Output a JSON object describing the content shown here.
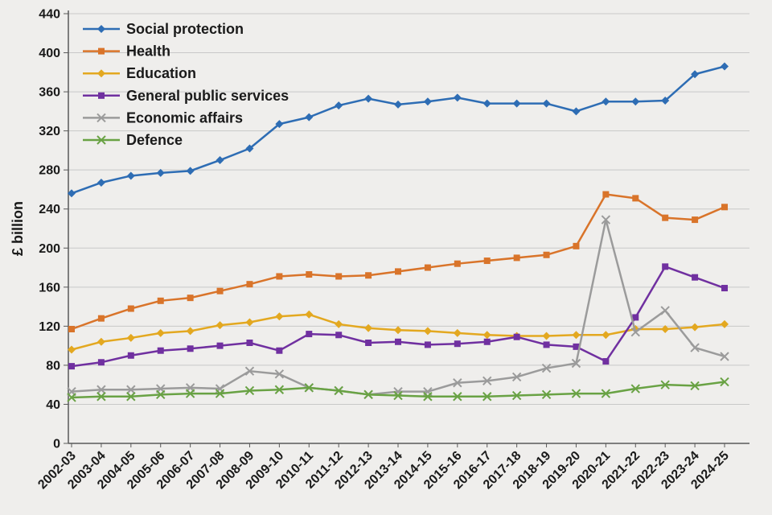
{
  "chart_data": {
    "type": "line",
    "title": "",
    "xlabel": "",
    "ylabel": "£ billion",
    "ylim": [
      0,
      440
    ],
    "ytick_step": 40,
    "grid": true,
    "legend_position": "top-left",
    "background_color": "#efeeec",
    "gridline_color": "#c8c8c8",
    "axis_color": "#595959",
    "categories": [
      "2002-03",
      "2003-04",
      "2004-05",
      "2005-06",
      "2006-07",
      "2007-08",
      "2008-09",
      "2009-10",
      "2010-11",
      "2011-12",
      "2012-13",
      "2013-14",
      "2014-15",
      "2015-16",
      "2016-17",
      "2017-18",
      "2018-19",
      "2019-20",
      "2020-21",
      "2021-22",
      "2022-23",
      "2023-24",
      "2024-25"
    ],
    "series": [
      {
        "name": "Social protection",
        "color": "#2e6db4",
        "marker": "diamond",
        "values": [
          256,
          267,
          274,
          277,
          279,
          290,
          302,
          327,
          334,
          346,
          353,
          347,
          350,
          354,
          348,
          348,
          348,
          340,
          350,
          350,
          351,
          378,
          386
        ]
      },
      {
        "name": "Health",
        "color": "#d9742a",
        "marker": "square",
        "values": [
          117,
          128,
          138,
          146,
          149,
          156,
          163,
          171,
          173,
          171,
          172,
          176,
          180,
          184,
          187,
          190,
          193,
          202,
          255,
          251,
          231,
          229,
          242
        ]
      },
      {
        "name": "Education",
        "color": "#e3a820",
        "marker": "diamond",
        "values": [
          96,
          104,
          108,
          113,
          115,
          121,
          124,
          130,
          132,
          122,
          118,
          116,
          115,
          113,
          111,
          110,
          110,
          111,
          111,
          117,
          117,
          119,
          122
        ]
      },
      {
        "name": "General public services",
        "color": "#7030a0",
        "marker": "square",
        "values": [
          79,
          83,
          90,
          95,
          97,
          100,
          103,
          95,
          112,
          111,
          103,
          104,
          101,
          102,
          104,
          109,
          101,
          99,
          84,
          129,
          181,
          170,
          159
        ]
      },
      {
        "name": "Economic affairs",
        "color": "#9b9b9b",
        "marker": "x",
        "values": [
          53,
          55,
          55,
          56,
          57,
          56,
          74,
          71,
          57,
          54,
          50,
          53,
          53,
          62,
          64,
          68,
          77,
          82,
          229,
          114,
          136,
          98,
          89
        ]
      },
      {
        "name": "Defence",
        "color": "#69a244",
        "marker": "x",
        "values": [
          47,
          48,
          48,
          50,
          51,
          51,
          54,
          55,
          57,
          54,
          50,
          49,
          48,
          48,
          48,
          49,
          50,
          51,
          51,
          56,
          60,
          59,
          63
        ]
      }
    ]
  }
}
